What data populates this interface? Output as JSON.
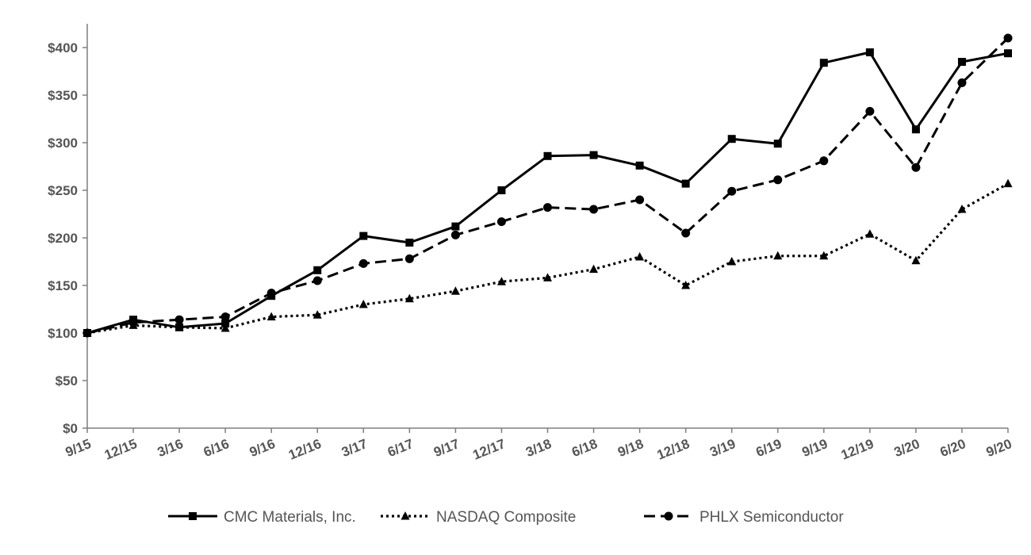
{
  "chart_data": {
    "type": "line",
    "title": "",
    "xlabel": "",
    "ylabel": "",
    "categories": [
      "9/15",
      "12/15",
      "3/16",
      "6/16",
      "9/16",
      "12/16",
      "3/17",
      "6/17",
      "9/17",
      "12/17",
      "3/18",
      "6/18",
      "9/18",
      "12/18",
      "3/19",
      "6/19",
      "9/19",
      "12/19",
      "3/20",
      "6/20",
      "9/20"
    ],
    "ylim": [
      0,
      425
    ],
    "yticks": [
      0,
      50,
      100,
      150,
      200,
      250,
      300,
      350,
      400
    ],
    "ytick_labels": [
      "$0",
      "$50",
      "$100",
      "$150",
      "$200",
      "$250",
      "$300",
      "$350",
      "$400"
    ],
    "grid": false,
    "legend_position": "bottom",
    "series": [
      {
        "name": "CMC Materials, Inc.",
        "marker": "square",
        "dash": "solid",
        "color": "#000000",
        "values": [
          100,
          114,
          106,
          110,
          139,
          166,
          202,
          195,
          212,
          250,
          286,
          287,
          276,
          257,
          304,
          299,
          384,
          395,
          314,
          385,
          394
        ]
      },
      {
        "name": "NASDAQ Composite",
        "marker": "triangle",
        "dash": "dotted",
        "color": "#000000",
        "values": [
          100,
          108,
          106,
          105,
          117,
          119,
          130,
          136,
          144,
          154,
          158,
          167,
          180,
          150,
          175,
          181,
          181,
          204,
          176,
          230,
          257
        ]
      },
      {
        "name": "PHLX Semiconductor",
        "marker": "circle",
        "dash": "dashed",
        "color": "#000000",
        "values": [
          100,
          111,
          114,
          117,
          142,
          155,
          173,
          178,
          203,
          217,
          232,
          230,
          240,
          205,
          249,
          261,
          281,
          333,
          274,
          363,
          410
        ]
      }
    ]
  }
}
